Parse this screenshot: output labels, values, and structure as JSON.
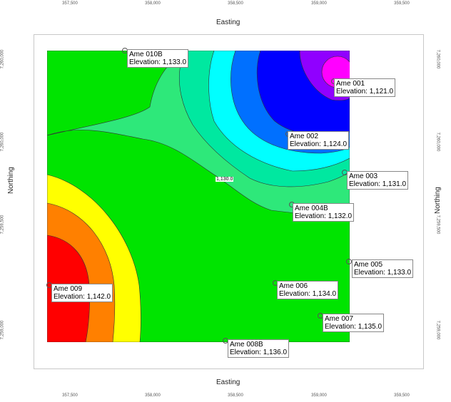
{
  "axes": {
    "x_title_top": "Easting",
    "x_title_bottom": "Easting",
    "y_title_left": "Northing",
    "y_title_right": "Northing",
    "x_ticks": [
      "357,500",
      "358,000",
      "358,500",
      "359,000",
      "359,500"
    ],
    "y_ticks": [
      "7,260,000",
      "7,260,000",
      "7,259,500",
      "7,259,000"
    ]
  },
  "contour_label": "1,130.0",
  "wells": [
    {
      "name": "Ame 010B",
      "elevation": "Elevation: 1,133.0"
    },
    {
      "name": "Ame 001",
      "elevation": "Elevation: 1,121.0"
    },
    {
      "name": "Ame 002",
      "elevation": "Elevation: 1,124.0"
    },
    {
      "name": "Ame 003",
      "elevation": "Elevation: 1,131.0"
    },
    {
      "name": "Ame 004B",
      "elevation": "Elevation: 1,132.0"
    },
    {
      "name": "Ame 005",
      "elevation": "Elevation: 1,133.0"
    },
    {
      "name": "Ame 006",
      "elevation": "Elevation: 1,134.0"
    },
    {
      "name": "Ame 007",
      "elevation": "Elevation: 1,135.0"
    },
    {
      "name": "Ame 008B",
      "elevation": "Elevation: 1,136.0"
    },
    {
      "name": "Ame 009",
      "elevation": "Elevation: 1,142.0"
    }
  ],
  "colors": {
    "red": "#ff0000",
    "orange": "#ff8000",
    "yellow": "#ffff00",
    "green1": "#00e400",
    "green2": "#2ee87a",
    "green3": "#00e8a0",
    "cyan": "#00ffff",
    "blue1": "#0070ff",
    "blue2": "#0000ff",
    "violet": "#9000ff",
    "magenta": "#ff00ff"
  }
}
